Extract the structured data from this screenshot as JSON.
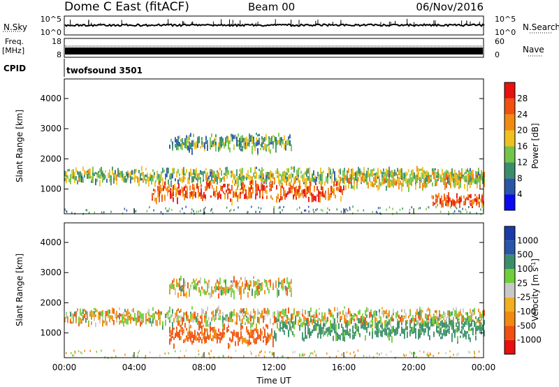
{
  "header": {
    "station": "Dome C East (fitACF)",
    "beam": "Beam 00",
    "date": "06/Nov/2016"
  },
  "panels": {
    "noise": {
      "left_label": "N.Sky",
      "right_label": "N.Search",
      "left_ticks": [
        "10^5",
        "10^0"
      ],
      "right_ticks": [
        "10^5",
        "10^0"
      ]
    },
    "freq": {
      "label_line1": "Freq.",
      "label_line2": "[MHz]",
      "left_ticks": [
        "18",
        "8"
      ],
      "right_label": "Nave",
      "right_ticks": [
        "60",
        "0"
      ]
    },
    "cpid": {
      "label": "CPID",
      "program": "twofsound 3501"
    }
  },
  "colors": {
    "power_scale": [
      "#0a0af0",
      "#2a56a8",
      "#3a8f6a",
      "#72c44a",
      "#f0c020",
      "#f08a10",
      "#f05010",
      "#e81010"
    ],
    "velocity_scale": [
      "#e81010",
      "#f05010",
      "#f08a10",
      "#f0b020",
      "#c8c8c8",
      "#6fcf3a",
      "#3a8f6a",
      "#2a56a8",
      "#1a3aa8"
    ]
  },
  "chart_data": [
    {
      "type": "heatmap",
      "title": "",
      "xlabel": "",
      "ylabel": "Slant Range [km]",
      "xticks": [
        "00:00",
        "04:00",
        "08:00",
        "12:00",
        "16:00",
        "20:00",
        "00:00"
      ],
      "yticks": [
        "1000",
        "2000",
        "3000",
        "4000"
      ],
      "xlim": [
        0,
        24
      ],
      "ylim": [
        180,
        4650
      ],
      "colorbar": {
        "label": "Power [dB]",
        "ticks": [
          "4",
          "8",
          "12",
          "16",
          "20",
          "24",
          "28"
        ],
        "range": [
          0,
          32
        ]
      },
      "features": [
        {
          "t0": 0,
          "t1": 24,
          "r": 1500,
          "w": 180,
          "power": 14
        },
        {
          "t0": 5,
          "t1": 16,
          "r": 1000,
          "w": 220,
          "power": 26
        },
        {
          "t0": 6,
          "t1": 13,
          "r": 2600,
          "w": 200,
          "power": 12
        },
        {
          "t0": 16,
          "t1": 24,
          "r": 1400,
          "w": 200,
          "power": 18
        },
        {
          "t0": 21,
          "t1": 24,
          "r": 700,
          "w": 150,
          "power": 26
        }
      ]
    },
    {
      "type": "heatmap",
      "title": "",
      "xlabel": "Time UT",
      "ylabel": "Slant Range [km]",
      "xticks": [
        "00:00",
        "04:00",
        "08:00",
        "12:00",
        "16:00",
        "20:00",
        "00:00"
      ],
      "yticks": [
        "1000",
        "2000",
        "3000",
        "4000"
      ],
      "xlim": [
        0,
        24
      ],
      "ylim": [
        180,
        4650
      ],
      "colorbar": {
        "label": "Velocity [m s^-1]",
        "ticks": [
          "1000",
          "500",
          "100",
          "25",
          "-25",
          "-100",
          "-500",
          "-1000"
        ]
      },
      "features": [
        {
          "t0": 0,
          "t1": 24,
          "r": 1600,
          "w": 200,
          "velocity": 0
        },
        {
          "t0": 6,
          "t1": 12,
          "r": 1000,
          "w": 250,
          "velocity": -150
        },
        {
          "t0": 12,
          "t1": 24,
          "r": 1200,
          "w": 250,
          "velocity": 200
        },
        {
          "t0": 6,
          "t1": 13,
          "r": 2600,
          "w": 200,
          "velocity": 0
        }
      ]
    }
  ]
}
